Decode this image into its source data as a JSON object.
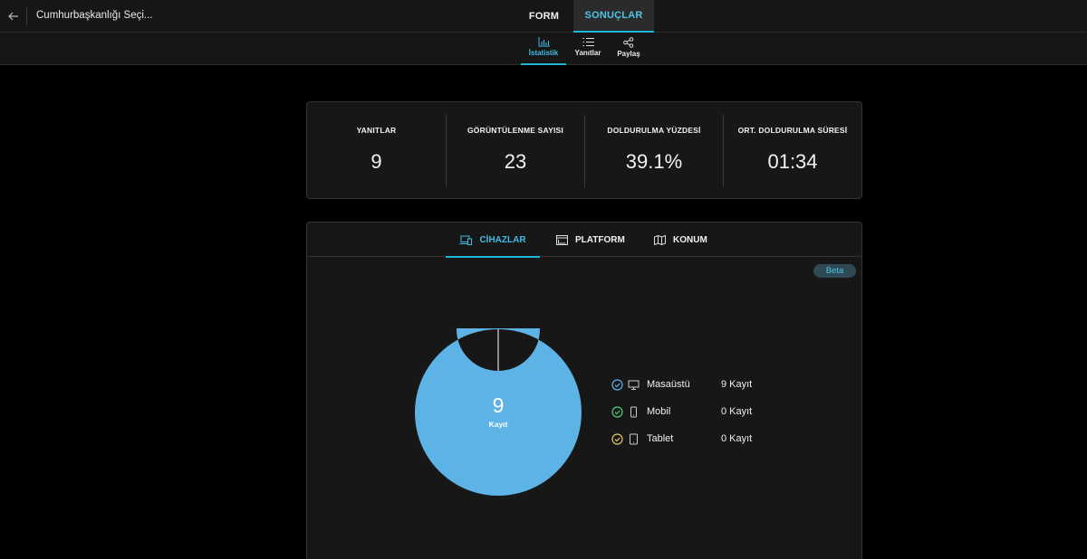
{
  "header": {
    "form_title": "Cumhurbaşkanlığı Seçi...",
    "tabs": [
      {
        "label": "FORM",
        "active": false
      },
      {
        "label": "SONUÇLAR",
        "active": true
      }
    ]
  },
  "subnav": {
    "items": [
      {
        "label": "İstatistik",
        "icon": "bar-chart-icon",
        "active": true
      },
      {
        "label": "Yanıtlar",
        "icon": "list-icon",
        "active": false
      },
      {
        "label": "Paylaş",
        "icon": "share-icon",
        "active": false
      }
    ]
  },
  "stats": [
    {
      "label": "YANITLAR",
      "value": "9"
    },
    {
      "label": "GÖRÜNTÜLENME SAYISI",
      "value": "23"
    },
    {
      "label": "DOLDURULMA YÜZDESİ",
      "value": "39.1%"
    },
    {
      "label": "ORT. DOLDURULMA SÜRESİ",
      "value": "01:34"
    }
  ],
  "chart_tabs": [
    {
      "label": "CİHAZLAR",
      "icon": "devices-icon",
      "active": true
    },
    {
      "label": "PLATFORM",
      "icon": "window-icon",
      "active": false
    },
    {
      "label": "KONUM",
      "icon": "map-icon",
      "active": false
    }
  ],
  "beta_label": "Beta",
  "colors": {
    "accent": "#1fb6d9",
    "desktop": "#5db3e6",
    "mobile": "#4ccf7a",
    "tablet": "#e9c46a"
  },
  "chart_data": {
    "type": "pie",
    "center_value": "9",
    "center_label": "Kayıt",
    "categories": [
      "Masaüstü",
      "Mobil",
      "Tablet"
    ],
    "values": [
      9,
      0,
      0
    ],
    "value_labels": [
      "9 Kayıt",
      "0 Kayıt",
      "0 Kayıt"
    ]
  }
}
